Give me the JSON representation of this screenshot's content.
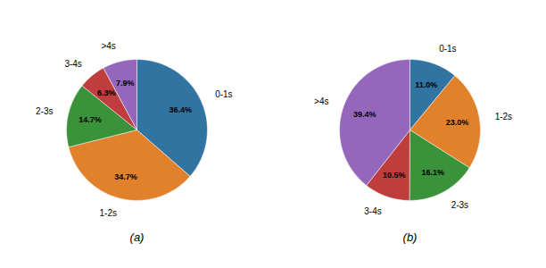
{
  "chart_data": [
    {
      "type": "pie",
      "title": "(a)",
      "categories": [
        "0-1s",
        "1-2s",
        "2-3s",
        "3-4s",
        ">4s"
      ],
      "values": [
        36.4,
        34.7,
        14.7,
        6.3,
        7.9
      ],
      "value_labels": [
        "36.4%",
        "34.7%",
        "14.7%",
        "6.3%",
        "7.9%"
      ],
      "colors": [
        "#3274a1",
        "#e1812b",
        "#3a923a",
        "#c03d3e",
        "#9467bd"
      ],
      "data_labels": true
    },
    {
      "type": "pie",
      "title": "(b)",
      "categories": [
        "0-1s",
        "1-2s",
        "2-3s",
        "3-4s",
        ">4s"
      ],
      "values": [
        11.0,
        23.0,
        16.1,
        10.5,
        39.4
      ],
      "value_labels": [
        "11.0%",
        "23.0%",
        "16.1%",
        "10.5%",
        "39.4%"
      ],
      "colors": [
        "#3274a1",
        "#e1812b",
        "#3a923a",
        "#c03d3e",
        "#9467bd"
      ],
      "data_labels": true
    }
  ]
}
